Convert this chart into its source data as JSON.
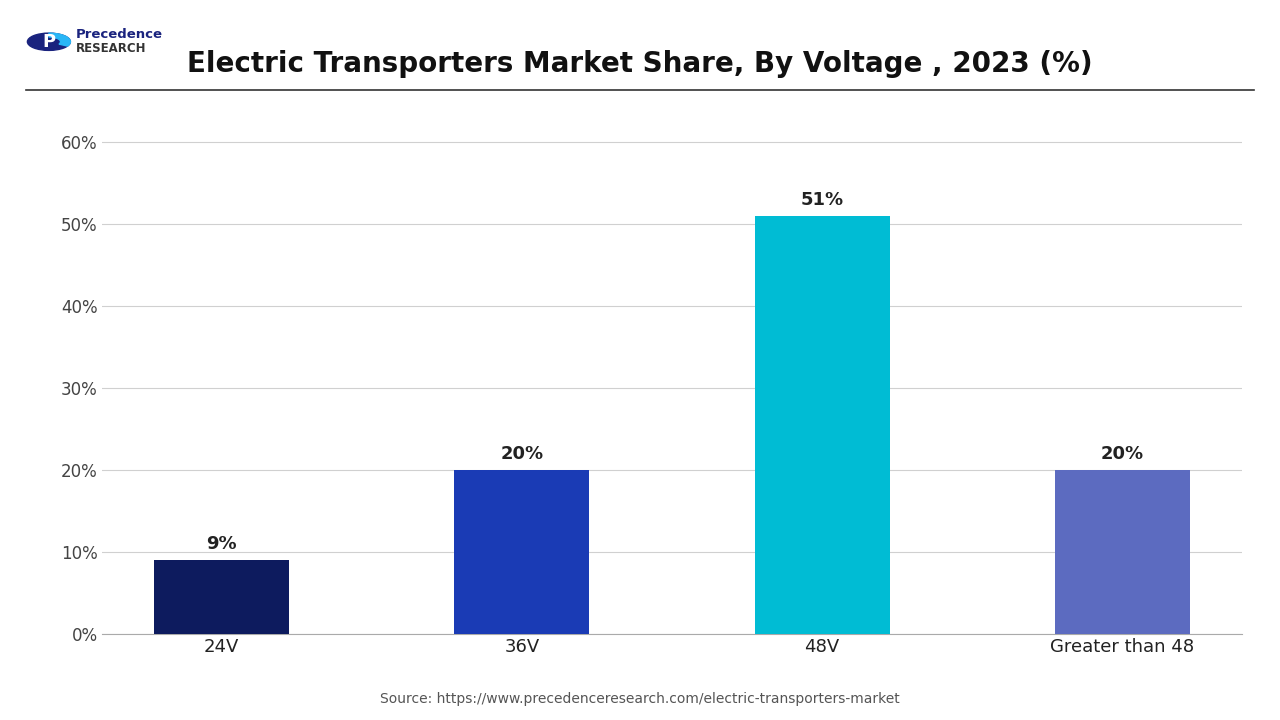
{
  "title": "Electric Transporters Market Share, By Voltage , 2023 (%)",
  "categories": [
    "24V",
    "36V",
    "48V",
    "Greater than 48"
  ],
  "values": [
    9,
    20,
    51,
    20
  ],
  "bar_colors": [
    "#0d1b5e",
    "#1a3bb5",
    "#00bcd4",
    "#5c6bc0"
  ],
  "label_format": [
    "9%",
    "20%",
    "51%",
    "20%"
  ],
  "yticks": [
    0,
    10,
    20,
    30,
    40,
    50,
    60
  ],
  "ytick_labels": [
    "0%",
    "10%",
    "20%",
    "30%",
    "40%",
    "50%",
    "60%"
  ],
  "ylim": [
    0,
    65
  ],
  "source_text": "Source: https://www.precedenceresearch.com/electric-transporters-market",
  "background_color": "#ffffff",
  "plot_background_color": "#ffffff",
  "title_fontsize": 20,
  "bar_label_fontsize": 13,
  "tick_fontsize": 12,
  "source_fontsize": 10,
  "bar_width": 0.45,
  "grid_color": "#d0d0d0",
  "header_line_color": "#333333",
  "logo_text_line1": "Precedence",
  "logo_text_line2": "RESEARCH"
}
